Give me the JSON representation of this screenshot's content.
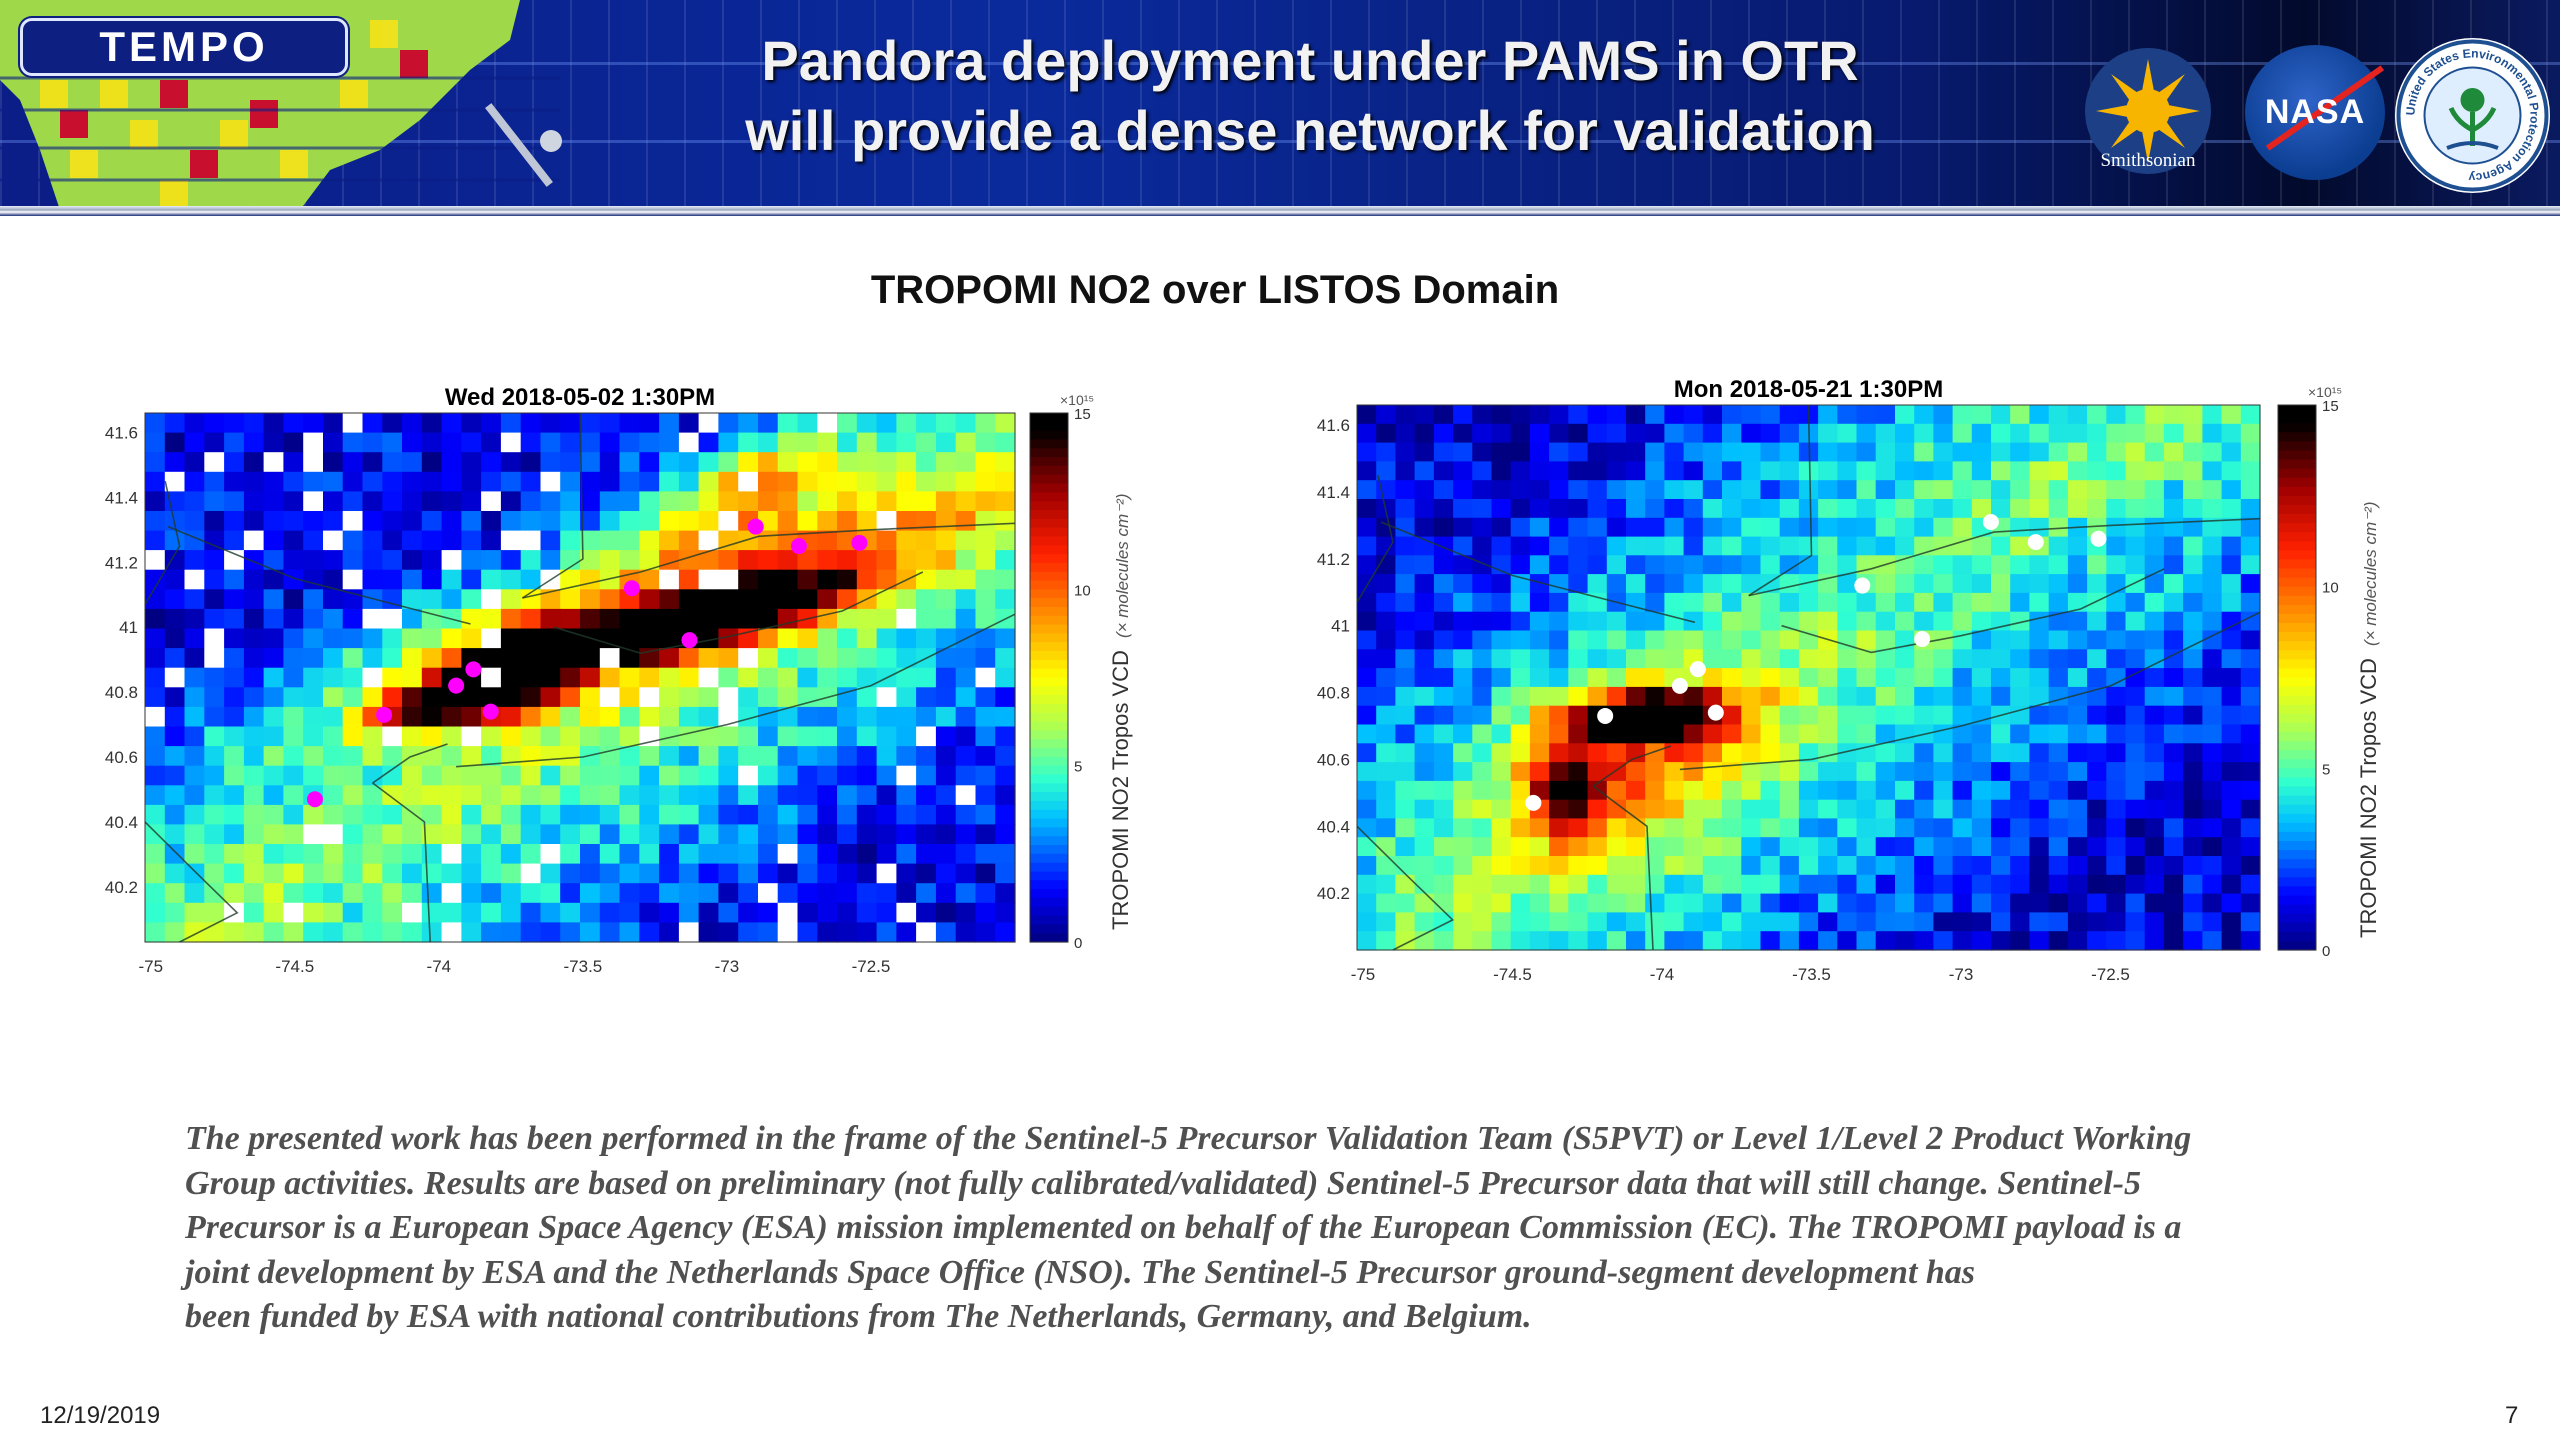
{
  "header": {
    "logo_text": "TEMPO",
    "title_line1": "Pandora deployment under PAMS in OTR",
    "title_line2": "will provide a dense network for validation",
    "partner_logos": {
      "smithsonian": "Smithsonian",
      "nasa": "NASA",
      "epa": "United States Environmental Protection Agency"
    }
  },
  "section_title": "TROPOMI NO2 over LISTOS Domain",
  "chart_data": [
    {
      "type": "heatmap",
      "title": "Wed 2018-05-02  1:30PM",
      "xlim": [
        -75.02,
        -72.0
      ],
      "ylim": [
        40.03,
        41.66
      ],
      "xticks": [
        "-75",
        "-74.5",
        "-74",
        "-73.5",
        "-73",
        "-72.5"
      ],
      "xtick_values": [
        -75,
        -74.5,
        -74,
        -73.5,
        -73,
        -72.5
      ],
      "yticks": [
        "41.6",
        "41.4",
        "41.2",
        "41",
        "40.8",
        "40.6",
        "40.4",
        "40.2"
      ],
      "ytick_values": [
        41.6,
        41.4,
        41.2,
        41.0,
        40.8,
        40.6,
        40.4,
        40.2
      ],
      "colorbar": {
        "label": "TROPOMI NO2 Tropos VCD",
        "units": "(× molecules cm⁻²)",
        "scale": "×10¹⁵",
        "ticks": [
          "0",
          "5",
          "10",
          "15"
        ],
        "tick_values": [
          0,
          5,
          10,
          15
        ],
        "range": [
          0,
          15
        ]
      },
      "grid": {
        "cols": 44,
        "rows": 27,
        "missing_fraction": 0.06,
        "seed": 7
      },
      "background": {
        "axis_lon": -73.8,
        "axis_lat": 40.55,
        "angle_deg": 32,
        "peak": 6.0,
        "falloff": 3.6,
        "width": 0.7
      },
      "plumes": [
        {
          "lon": -73.1,
          "lat": 41.02,
          "peak": 13,
          "sx": 0.35,
          "sy": 0.07,
          "angle_deg": 16
        },
        {
          "lon": -73.75,
          "lat": 40.86,
          "peak": 13,
          "sx": 0.16,
          "sy": 0.1,
          "angle_deg": 30
        },
        {
          "lon": -74.05,
          "lat": 40.76,
          "peak": 9,
          "sx": 0.14,
          "sy": 0.06,
          "angle_deg": 20
        },
        {
          "lon": -73.2,
          "lat": 41.08,
          "peak": 6,
          "sx": 0.8,
          "sy": 0.17,
          "angle_deg": 20
        },
        {
          "lon": -72.9,
          "lat": 41.45,
          "peak": 5,
          "sx": 0.25,
          "sy": 0.1,
          "angle_deg": 35
        }
      ],
      "marker_color": "#ff00ff",
      "sites": [
        {
          "lon": -72.9,
          "lat": 41.31
        },
        {
          "lon": -72.75,
          "lat": 41.25
        },
        {
          "lon": -72.54,
          "lat": 41.26
        },
        {
          "lon": -73.33,
          "lat": 41.12
        },
        {
          "lon": -73.13,
          "lat": 40.96
        },
        {
          "lon": -73.88,
          "lat": 40.87
        },
        {
          "lon": -73.94,
          "lat": 40.82
        },
        {
          "lon": -73.82,
          "lat": 40.74
        },
        {
          "lon": -74.19,
          "lat": 40.73
        },
        {
          "lon": -74.43,
          "lat": 40.47
        }
      ]
    },
    {
      "type": "heatmap",
      "title": "Mon 2018-05-21  1:30PM",
      "xlim": [
        -75.02,
        -72.0
      ],
      "ylim": [
        40.03,
        41.66
      ],
      "xticks": [
        "-75",
        "-74.5",
        "-74",
        "-73.5",
        "-73",
        "-72.5"
      ],
      "xtick_values": [
        -75,
        -74.5,
        -74,
        -73.5,
        -73,
        -72.5
      ],
      "yticks": [
        "41.6",
        "41.4",
        "41.2",
        "41",
        "40.8",
        "40.6",
        "40.4",
        "40.2"
      ],
      "ytick_values": [
        41.6,
        41.4,
        41.2,
        41.0,
        40.8,
        40.6,
        40.4,
        40.2
      ],
      "colorbar": {
        "label": "TROPOMI NO2 Tropos VCD",
        "units": "(× molecules cm⁻²)",
        "scale": "×10¹⁵",
        "ticks": [
          "0",
          "5",
          "10",
          "15"
        ],
        "tick_values": [
          0,
          5,
          10,
          15
        ],
        "range": [
          0,
          15
        ]
      },
      "grid": {
        "cols": 47,
        "rows": 29,
        "missing_fraction": 0,
        "seed": 21
      },
      "background": {
        "axis_lon": -74.2,
        "axis_lat": 40.45,
        "angle_deg": 40,
        "peak": 5.5,
        "falloff": 3.4,
        "width": 0.9
      },
      "plumes": [
        {
          "lon": -74.05,
          "lat": 40.73,
          "peak": 11,
          "sx": 0.2,
          "sy": 0.07,
          "angle_deg": 5
        },
        {
          "lon": -74.32,
          "lat": 40.5,
          "peak": 7,
          "sx": 0.1,
          "sy": 0.12,
          "angle_deg": 0
        },
        {
          "lon": -74.1,
          "lat": 40.58,
          "peak": 4,
          "sx": 0.35,
          "sy": 0.25,
          "angle_deg": 30
        }
      ],
      "marker_color": "#ffffff",
      "sites": [
        {
          "lon": -72.9,
          "lat": 41.31
        },
        {
          "lon": -72.75,
          "lat": 41.25
        },
        {
          "lon": -72.54,
          "lat": 41.26
        },
        {
          "lon": -73.33,
          "lat": 41.12
        },
        {
          "lon": -73.13,
          "lat": 40.96
        },
        {
          "lon": -73.88,
          "lat": 40.87
        },
        {
          "lon": -73.94,
          "lat": 40.82
        },
        {
          "lon": -73.82,
          "lat": 40.74
        },
        {
          "lon": -74.19,
          "lat": 40.73
        },
        {
          "lon": -74.43,
          "lat": 40.47
        }
      ]
    }
  ],
  "boundaries": [
    [
      [
        -73.94,
        40.57
      ],
      [
        -73.5,
        40.6
      ],
      [
        -73.0,
        40.7
      ],
      [
        -72.5,
        40.82
      ],
      [
        -72.0,
        41.04
      ]
    ],
    [
      [
        -73.6,
        41.0
      ],
      [
        -73.3,
        40.92
      ],
      [
        -73.0,
        40.97
      ],
      [
        -72.6,
        41.05
      ],
      [
        -72.32,
        41.17
      ]
    ],
    [
      [
        -73.71,
        41.09
      ],
      [
        -73.3,
        41.17
      ],
      [
        -72.89,
        41.28
      ],
      [
        -72.5,
        41.3
      ],
      [
        -72.0,
        41.32
      ]
    ],
    [
      [
        -74.94,
        41.31
      ],
      [
        -74.5,
        41.15
      ],
      [
        -73.89,
        41.01
      ]
    ],
    [
      [
        -73.51,
        41.66
      ],
      [
        -73.5,
        41.21
      ],
      [
        -73.71,
        41.09
      ]
    ],
    [
      [
        -74.23,
        40.52
      ],
      [
        -74.1,
        40.6
      ],
      [
        -73.97,
        40.64
      ]
    ],
    [
      [
        -74.03,
        40.03
      ],
      [
        -74.05,
        40.4
      ],
      [
        -74.23,
        40.52
      ]
    ],
    [
      [
        -75.02,
        41.07
      ],
      [
        -74.9,
        41.25
      ],
      [
        -74.95,
        41.45
      ]
    ],
    [
      [
        -75.02,
        40.4
      ],
      [
        -74.85,
        40.25
      ],
      [
        -74.7,
        40.12
      ],
      [
        -74.9,
        40.03
      ]
    ]
  ],
  "notes": [
    "The presented work has been performed in the frame of the Sentinel-5 Precursor Validation Team (S5PVT) or Level 1/Level 2 Product Working",
    "Group activities. Results are based on preliminary (not fully calibrated/validated) Sentinel-5 Precursor data that will still change.  Sentinel-5",
    "Precursor is a European Space Agency (ESA) mission implemented on behalf of the European Commission (EC). The TROPOMI payload is a",
    "joint development by ESA and the Netherlands Space Office (NSO). The Sentinel-5 Precursor ground-segment development has",
    "been funded by ESA with national contributions from The Netherlands, Germany, and Belgium."
  ],
  "footer": {
    "date": "12/19/2019",
    "page": "7"
  }
}
